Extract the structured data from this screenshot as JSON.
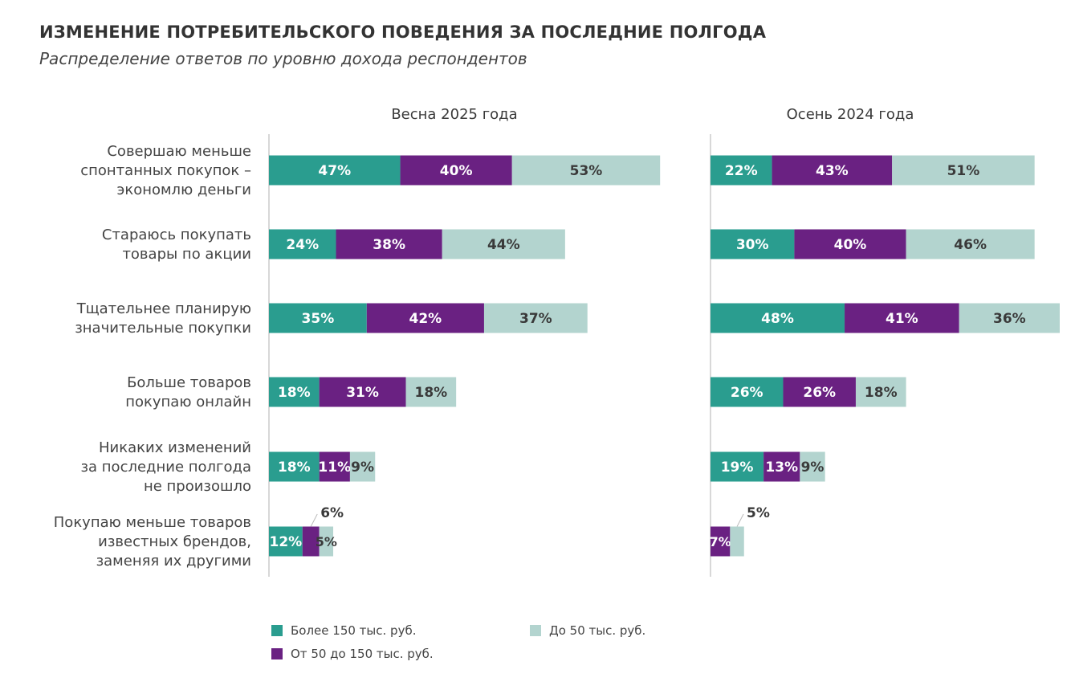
{
  "title": "ИЗМЕНЕНИЕ ПОТРЕБИТЕЛЬСКОГО ПОВЕДЕНИЯ ЗА ПОСЛЕДНИЕ ПОЛГОДА",
  "subtitle": "Распределение ответов по уровню дохода респондентов",
  "colors": {
    "high": "#2a9d8f",
    "mid": "#6a2182",
    "low": "#b3d4cf"
  },
  "legend": [
    {
      "key": "high",
      "label": "Более 150 тыс. руб."
    },
    {
      "key": "mid",
      "label": "От 50 до 150 тыс. руб."
    },
    {
      "key": "low",
      "label": "До 50 тыс. руб."
    }
  ],
  "chart_data": [
    {
      "type": "bar",
      "stacked": true,
      "orientation": "horizontal",
      "title": "Весна 2025 года",
      "categories": [
        "Совершаю меньше спонтанных покупок – экономлю деньги",
        "Стараюсь покупать товары по акции",
        "Тщательнее планирую значительные покупки",
        "Больше товаров покупаю онлайн",
        "Никаких изменений за последние полгода не произошло",
        "Покупаю меньше товаров известных брендов, заменяя их другими"
      ],
      "series": [
        {
          "name": "Более 150 тыс. руб.",
          "values": [
            47,
            24,
            35,
            18,
            18,
            12
          ]
        },
        {
          "name": "От 50 до 150 тыс. руб.",
          "values": [
            40,
            38,
            42,
            31,
            11,
            6
          ]
        },
        {
          "name": "До 50 тыс. руб.",
          "values": [
            53,
            44,
            37,
            18,
            9,
            5
          ]
        }
      ]
    },
    {
      "type": "bar",
      "stacked": true,
      "orientation": "horizontal",
      "title": "Осень 2024 года",
      "categories": [
        "Совершаю меньше спонтанных покупок – экономлю деньги",
        "Стараюсь покупать товары по акции",
        "Тщательнее планирую значительные покупки",
        "Больше товаров покупаю онлайн",
        "Никаких изменений за последние полгода не произошло",
        "Покупаю меньше товаров известных брендов, заменяя их другими"
      ],
      "series": [
        {
          "name": "Более 150 тыс. руб.",
          "values": [
            22,
            30,
            48,
            26,
            19,
            0
          ]
        },
        {
          "name": "От 50 до 150 тыс. руб.",
          "values": [
            43,
            40,
            41,
            26,
            13,
            7
          ]
        },
        {
          "name": "До 50 тыс. руб.",
          "values": [
            51,
            46,
            36,
            18,
            9,
            5
          ]
        }
      ]
    }
  ],
  "row_labels": [
    [
      "Совершаю меньше",
      "спонтанных покупок –",
      "экономлю деньги"
    ],
    [
      "Стараюсь покупать",
      "товары по акции"
    ],
    [
      "Тщательнее планирую",
      "значительные покупки"
    ],
    [
      "Больше товаров",
      "покупаю онлайн"
    ],
    [
      "Никаких изменений",
      "за последние полгода",
      "не произошло"
    ],
    [
      "Покупаю меньше товаров",
      "известных брендов,",
      "заменяя их другими"
    ]
  ]
}
